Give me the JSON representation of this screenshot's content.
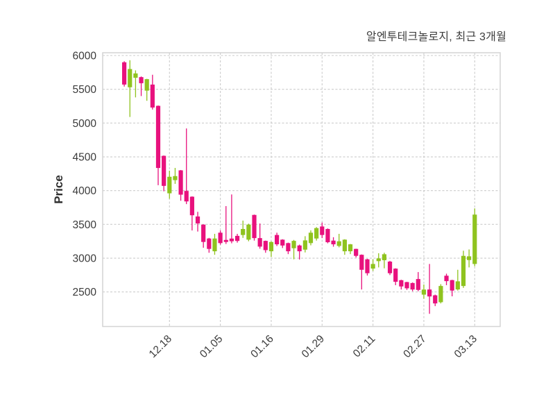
{
  "header": {
    "title": "알엔투테크놀로지, 최근 3개월"
  },
  "chart_data": {
    "type": "candlestick",
    "title": "알엔투테크놀로지, 최근 3개월",
    "xlabel": "",
    "ylabel": "Price",
    "y_ticks": [
      2500,
      3000,
      3500,
      4000,
      4500,
      5000,
      5500,
      6000
    ],
    "ylim": [
      2050,
      6040
    ],
    "x_tick_labels": [
      "12.18",
      "01.05",
      "01.16",
      "01.29",
      "02.11",
      "02.27",
      "03.13"
    ],
    "x_tick_indices": [
      8,
      17,
      26,
      35,
      44,
      53,
      62
    ],
    "grid": "dashed",
    "legend_position": "none",
    "colors": {
      "up": "#8FC31F",
      "down": "#E8117D",
      "grid": "#cbcbcb",
      "border": "#d4d4d4",
      "tick_text": "#3a3a3a"
    },
    "candles_ohlc": [
      [
        5900,
        5915,
        5540,
        5570
      ],
      [
        5530,
        5930,
        5090,
        5800
      ],
      [
        5670,
        5780,
        5380,
        5735
      ],
      [
        5680,
        5690,
        5400,
        5590
      ],
      [
        5480,
        5655,
        5330,
        5650
      ],
      [
        5570,
        5715,
        5200,
        5230
      ],
      [
        5255,
        5260,
        4080,
        4335
      ],
      [
        4515,
        4520,
        3990,
        4070
      ],
      [
        3960,
        4295,
        3880,
        4205
      ],
      [
        4155,
        4336,
        4100,
        4215
      ],
      [
        4300,
        4305,
        3850,
        3940
      ],
      [
        3995,
        4920,
        3800,
        3840
      ],
      [
        3910,
        3915,
        3410,
        3635
      ],
      [
        3617,
        3686,
        3394,
        3514
      ],
      [
        3497,
        3500,
        3154,
        3240
      ],
      [
        3291,
        3300,
        3080,
        3137
      ],
      [
        3102,
        3360,
        3050,
        3291
      ],
      [
        3377,
        3410,
        3200,
        3223
      ],
      [
        3270,
        3771,
        3210,
        3240
      ],
      [
        3290,
        3943,
        3220,
        3250
      ],
      [
        3330,
        3360,
        3230,
        3255
      ],
      [
        3343,
        3556,
        3300,
        3432
      ],
      [
        3274,
        3510,
        3250,
        3497
      ],
      [
        3640,
        3645,
        3260,
        3297
      ],
      [
        3297,
        3513,
        3140,
        3171
      ],
      [
        3256,
        3260,
        3080,
        3119
      ],
      [
        3102,
        3250,
        3017,
        3239
      ],
      [
        3343,
        3377,
        3180,
        3205
      ],
      [
        3274,
        3280,
        3150,
        3187
      ],
      [
        3223,
        3230,
        3060,
        3102
      ],
      [
        3147,
        3270,
        2983,
        3256
      ],
      [
        3188,
        3200,
        2980,
        3102
      ],
      [
        3126,
        3325,
        3085,
        3263
      ],
      [
        3223,
        3411,
        3190,
        3377
      ],
      [
        3291,
        3460,
        3260,
        3445
      ],
      [
        3469,
        3527,
        3297,
        3343
      ],
      [
        3432,
        3440,
        3220,
        3236
      ],
      [
        3260,
        3310,
        3170,
        3205
      ],
      [
        3181,
        3360,
        3160,
        3250
      ],
      [
        3102,
        3280,
        3050,
        3274
      ],
      [
        3102,
        3210,
        3060,
        3205
      ],
      [
        3137,
        3140,
        3010,
        3034
      ],
      [
        3050,
        3055,
        2536,
        2828
      ],
      [
        2983,
        2990,
        2743,
        2777
      ],
      [
        2846,
        2983,
        2811,
        2914
      ],
      [
        2956,
        3073,
        2863,
        2997
      ],
      [
        2970,
        3080,
        2850,
        3058
      ],
      [
        2949,
        2960,
        2750,
        2777
      ],
      [
        2845,
        2850,
        2600,
        2650
      ],
      [
        2674,
        2680,
        2536,
        2581
      ],
      [
        2646,
        2650,
        2530,
        2554
      ],
      [
        2632,
        2640,
        2510,
        2536
      ],
      [
        2691,
        2794,
        2510,
        2530
      ],
      [
        2460,
        2610,
        2400,
        2535
      ],
      [
        2536,
        2914,
        2176,
        2433
      ],
      [
        2450,
        2460,
        2290,
        2330
      ],
      [
        2348,
        2615,
        2330,
        2588
      ],
      [
        2740,
        2770,
        2600,
        2660
      ],
      [
        2675,
        2680,
        2435,
        2520
      ],
      [
        2537,
        2828,
        2520,
        2657
      ],
      [
        2588,
        3110,
        2560,
        3034
      ],
      [
        2972,
        3129,
        2863,
        3027
      ],
      [
        2914,
        3737,
        2880,
        3645
      ]
    ]
  }
}
